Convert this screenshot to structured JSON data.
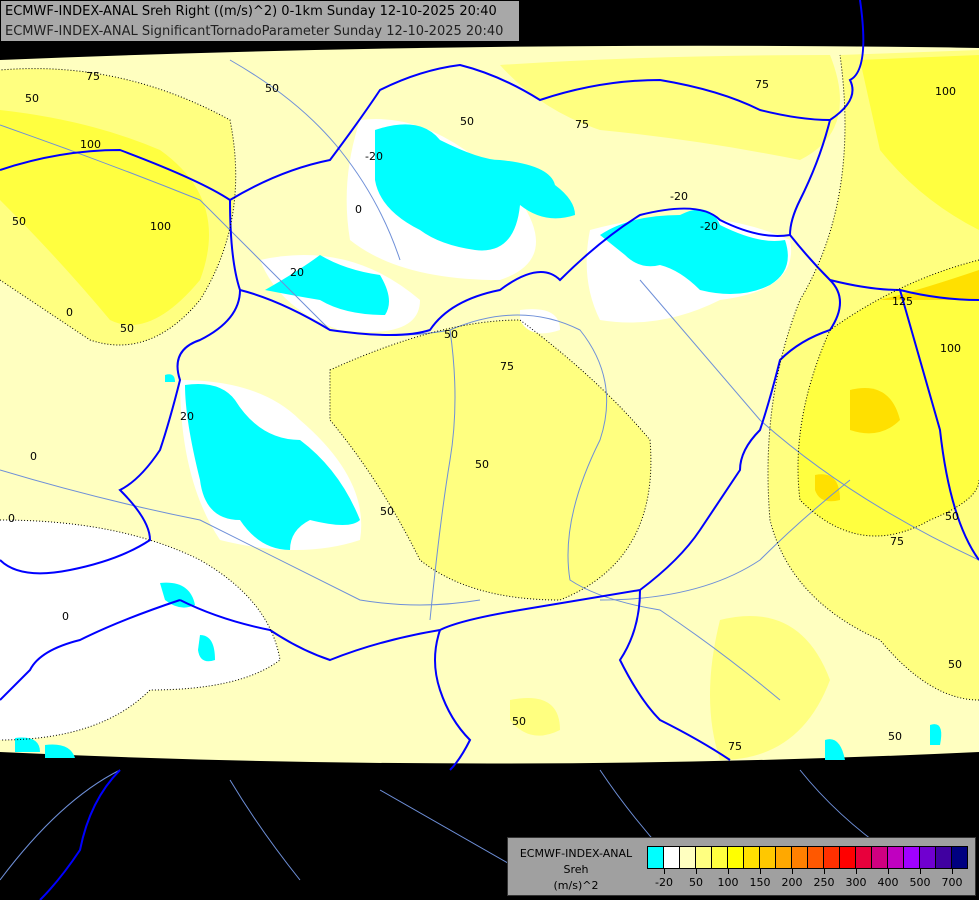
{
  "header": {
    "line1": "ECMWF-INDEX-ANAL Sreh Right ((m/s)^2) 0-1km Sunday 12-10-2025 20:40",
    "line2": "ECMWF-INDEX-ANAL SignificantTornadoParameter Sunday 12-10-2025 20:40"
  },
  "legend": {
    "model": "ECMWF-INDEX-ANAL",
    "parameter": "Sreh",
    "unit": "(m/s)^2",
    "colors": [
      "#00ffff",
      "#ffffff",
      "#ffffc0",
      "#ffff80",
      "#ffff40",
      "#ffff00",
      "#ffe000",
      "#ffc800",
      "#ffa800",
      "#ff8000",
      "#ff5800",
      "#ff3000",
      "#ff0000",
      "#e8003c",
      "#d00080",
      "#c000c0",
      "#a000ff",
      "#7000d0",
      "#4000a0",
      "#000080"
    ],
    "tick_labels": [
      "-20",
      "50",
      "100",
      "150",
      "200",
      "250",
      "300",
      "400",
      "500",
      "700"
    ]
  },
  "map": {
    "colors": {
      "background": "#000000",
      "field_base": "#ffffc0",
      "field_mid": "#ffff80",
      "field_high": "#ffff40",
      "field_peak": "#ffe000",
      "negative": "#00ffff",
      "near_zero": "#ffffff",
      "borders": "#0000ff",
      "rivers": "#6e8fd8"
    },
    "contour_labels": [
      "75",
      "50",
      "75",
      "100",
      "100",
      "50",
      "0",
      "50",
      "-20",
      "0",
      "50",
      "75",
      "20",
      "-20",
      "100",
      "125",
      "100",
      "20",
      "0",
      "50",
      "75",
      "50",
      "50",
      "50",
      "-20",
      "0",
      "0",
      "75",
      "50",
      "50",
      "50",
      "75",
      "50"
    ]
  }
}
